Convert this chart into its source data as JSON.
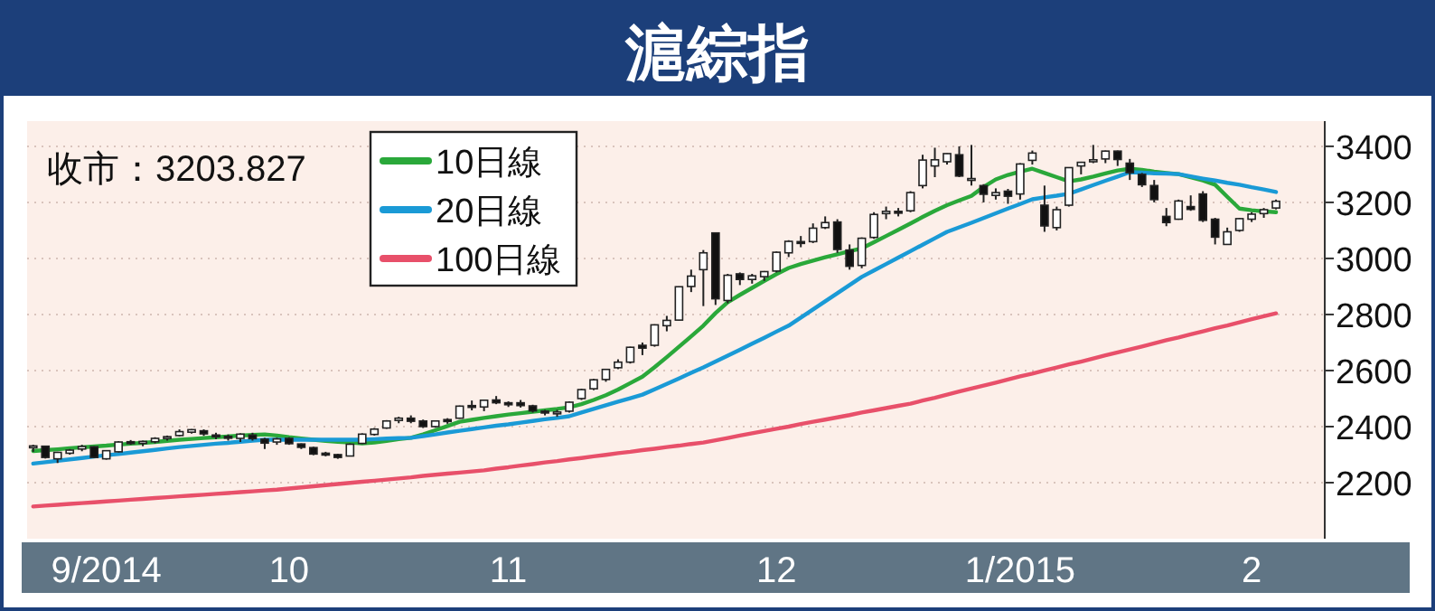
{
  "chart_data": {
    "type": "candlestick",
    "title": "滬綜指",
    "annotations": [
      "收市：3203.827"
    ],
    "categories": [
      null,
      null,
      null,
      null,
      null,
      null,
      "9/2014",
      null,
      null,
      null,
      null,
      null,
      null,
      null,
      null,
      null,
      null,
      null,
      null,
      null,
      null,
      "10",
      null,
      null,
      null,
      null,
      null,
      null,
      null,
      null,
      null,
      null,
      null,
      null,
      null,
      null,
      null,
      null,
      null,
      "11",
      null,
      null,
      null,
      null,
      null,
      null,
      null,
      null,
      null,
      null,
      null,
      null,
      null,
      null,
      null,
      null,
      null,
      null,
      null,
      null,
      null,
      "12",
      null,
      null,
      null,
      null,
      null,
      null,
      null,
      null,
      null,
      null,
      null,
      null,
      null,
      null,
      null,
      null,
      null,
      null,
      null,
      "1/2015",
      null,
      null,
      null,
      null,
      null,
      null,
      null,
      null,
      null,
      null,
      null,
      null,
      null,
      null,
      null,
      null,
      null,
      null,
      "2",
      null,
      null
    ],
    "ohlc": [
      [
        2325,
        2335,
        2310,
        2331
      ],
      [
        2330,
        2332,
        2286,
        2290
      ],
      [
        2285,
        2310,
        2270,
        2308
      ],
      [
        2305,
        2320,
        2300,
        2316
      ],
      [
        2320,
        2335,
        2312,
        2329
      ],
      [
        2328,
        2330,
        2288,
        2290
      ],
      [
        2285,
        2316,
        2282,
        2314
      ],
      [
        2310,
        2348,
        2308,
        2345
      ],
      [
        2346,
        2352,
        2335,
        2343
      ],
      [
        2340,
        2350,
        2330,
        2347
      ],
      [
        2346,
        2362,
        2340,
        2358
      ],
      [
        2358,
        2368,
        2350,
        2364
      ],
      [
        2368,
        2390,
        2365,
        2382
      ],
      [
        2380,
        2391,
        2375,
        2389
      ],
      [
        2385,
        2390,
        2367,
        2374
      ],
      [
        2370,
        2378,
        2355,
        2366
      ],
      [
        2365,
        2372,
        2350,
        2359
      ],
      [
        2358,
        2376,
        2345,
        2373
      ],
      [
        2370,
        2378,
        2350,
        2357
      ],
      [
        2355,
        2360,
        2320,
        2341
      ],
      [
        2345,
        2360,
        2335,
        2356
      ],
      [
        2358,
        2362,
        2335,
        2339
      ],
      [
        2338,
        2340,
        2320,
        2326
      ],
      [
        2325,
        2328,
        2298,
        2302
      ],
      [
        2305,
        2310,
        2294,
        2302
      ],
      [
        2300,
        2303,
        2285,
        2290
      ],
      [
        2295,
        2340,
        2294,
        2337
      ],
      [
        2340,
        2376,
        2338,
        2373
      ],
      [
        2372,
        2395,
        2368,
        2391
      ],
      [
        2395,
        2423,
        2392,
        2420
      ],
      [
        2422,
        2435,
        2412,
        2430
      ],
      [
        2430,
        2440,
        2412,
        2419
      ],
      [
        2420,
        2425,
        2395,
        2400
      ],
      [
        2400,
        2422,
        2396,
        2420
      ],
      [
        2425,
        2430,
        2410,
        2418
      ],
      [
        2430,
        2475,
        2428,
        2473
      ],
      [
        2475,
        2493,
        2458,
        2469
      ],
      [
        2470,
        2496,
        2455,
        2494
      ],
      [
        2495,
        2509,
        2480,
        2485
      ],
      [
        2485,
        2490,
        2470,
        2478
      ],
      [
        2485,
        2495,
        2468,
        2475
      ],
      [
        2474,
        2478,
        2450,
        2456
      ],
      [
        2455,
        2460,
        2440,
        2450
      ],
      [
        2448,
        2460,
        2435,
        2452
      ],
      [
        2455,
        2490,
        2450,
        2487
      ],
      [
        2500,
        2535,
        2495,
        2532
      ],
      [
        2535,
        2570,
        2530,
        2567
      ],
      [
        2568,
        2605,
        2560,
        2604
      ],
      [
        2610,
        2640,
        2605,
        2630
      ],
      [
        2630,
        2685,
        2625,
        2683
      ],
      [
        2690,
        2700,
        2655,
        2680
      ],
      [
        2690,
        2765,
        2685,
        2763
      ],
      [
        2760,
        2795,
        2740,
        2779
      ],
      [
        2780,
        2900,
        2778,
        2899
      ],
      [
        2900,
        2960,
        2880,
        2937
      ],
      [
        2960,
        3030,
        2830,
        3020
      ],
      [
        3091,
        3091,
        2834,
        2856
      ],
      [
        2850,
        2945,
        2840,
        2940
      ],
      [
        2945,
        2950,
        2905,
        2925
      ],
      [
        2925,
        2945,
        2910,
        2938
      ],
      [
        2935,
        2955,
        2920,
        2953
      ],
      [
        2955,
        3025,
        2950,
        3022
      ],
      [
        3020,
        3065,
        3005,
        3061
      ],
      [
        3060,
        3080,
        3040,
        3057
      ],
      [
        3060,
        3125,
        3055,
        3108
      ],
      [
        3110,
        3150,
        3105,
        3128
      ],
      [
        3130,
        3140,
        3020,
        3032
      ],
      [
        3030,
        3050,
        2960,
        2972
      ],
      [
        2975,
        3075,
        2965,
        3072
      ],
      [
        3075,
        3165,
        3070,
        3157
      ],
      [
        3160,
        3185,
        3140,
        3168
      ],
      [
        3168,
        3180,
        3150,
        3166
      ],
      [
        3170,
        3240,
        3165,
        3235
      ],
      [
        3260,
        3370,
        3250,
        3351
      ],
      [
        3330,
        3395,
        3290,
        3352
      ],
      [
        3345,
        3375,
        3335,
        3374
      ],
      [
        3370,
        3400,
        3290,
        3294
      ],
      [
        3280,
        3405,
        3260,
        3285
      ],
      [
        3260,
        3265,
        3200,
        3229
      ],
      [
        3225,
        3250,
        3210,
        3235
      ],
      [
        3240,
        3248,
        3195,
        3222
      ],
      [
        3230,
        3340,
        3210,
        3337
      ],
      [
        3350,
        3385,
        3335,
        3376
      ],
      [
        3190,
        3260,
        3095,
        3116
      ],
      [
        3110,
        3185,
        3100,
        3174
      ],
      [
        3190,
        3325,
        3185,
        3324
      ],
      [
        3330,
        3345,
        3300,
        3343
      ],
      [
        3345,
        3405,
        3340,
        3352
      ],
      [
        3355,
        3385,
        3340,
        3383
      ],
      [
        3383,
        3385,
        3330,
        3353
      ],
      [
        3340,
        3355,
        3280,
        3306
      ],
      [
        3300,
        3305,
        3255,
        3263
      ],
      [
        3260,
        3280,
        3200,
        3210
      ],
      [
        3150,
        3180,
        3115,
        3128
      ],
      [
        3140,
        3210,
        3138,
        3205
      ],
      [
        3185,
        3225,
        3170,
        3175
      ],
      [
        3230,
        3240,
        3130,
        3136
      ],
      [
        3140,
        3145,
        3050,
        3076
      ],
      [
        3050,
        3110,
        3050,
        3095
      ],
      [
        3100,
        3145,
        3095,
        3142
      ],
      [
        3140,
        3165,
        3130,
        3158
      ],
      [
        3160,
        3180,
        3145,
        3174
      ],
      [
        3180,
        3210,
        3175,
        3204
      ]
    ],
    "series": [
      {
        "name": "10日線",
        "type": "line",
        "color": "#2aa83a",
        "values": [
          2313,
          2316,
          2319,
          2323,
          2326,
          2329,
          2332,
          2336,
          2339,
          2342,
          2345,
          2349,
          2353,
          2356,
          2359,
          2362,
          2365,
          2368,
          2370,
          2372,
          2368,
          2362,
          2357,
          2353,
          2349,
          2346,
          2343,
          2340,
          2343,
          2349,
          2355,
          2360,
          2372,
          2387,
          2402,
          2417,
          2424,
          2431,
          2437,
          2443,
          2448,
          2453,
          2458,
          2463,
          2469,
          2480,
          2495,
          2512,
          2532,
          2555,
          2578,
          2612,
          2648,
          2685,
          2722,
          2760,
          2805,
          2844,
          2870,
          2895,
          2920,
          2944,
          2966,
          2980,
          2992,
          3004,
          3015,
          3026,
          3036,
          3058,
          3080,
          3102,
          3125,
          3148,
          3170,
          3190,
          3207,
          3223,
          3255,
          3282,
          3298,
          3310,
          3320,
          3305,
          3290,
          3275,
          3282,
          3292,
          3303,
          3314,
          3320,
          3316,
          3310,
          3305,
          3301,
          3290,
          3278,
          3263,
          3220,
          3178,
          3172,
          3168,
          3165
        ]
      },
      {
        "name": "20日線",
        "type": "line",
        "color": "#1a9ad6",
        "values": [
          2268,
          2273,
          2278,
          2283,
          2288,
          2293,
          2298,
          2302,
          2307,
          2312,
          2317,
          2322,
          2327,
          2331,
          2335,
          2339,
          2342,
          2346,
          2350,
          2353,
          2353,
          2353,
          2353,
          2353,
          2353,
          2353,
          2353,
          2353,
          2355,
          2357,
          2359,
          2360,
          2366,
          2372,
          2379,
          2385,
          2391,
          2397,
          2403,
          2408,
          2414,
          2420,
          2426,
          2431,
          2437,
          2450,
          2463,
          2476,
          2489,
          2501,
          2514,
          2533,
          2552,
          2572,
          2592,
          2611,
          2632,
          2653,
          2674,
          2696,
          2717,
          2739,
          2760,
          2789,
          2818,
          2847,
          2876,
          2905,
          2934,
          2957,
          2980,
          3003,
          3026,
          3049,
          3072,
          3095,
          3111,
          3127,
          3144,
          3161,
          3178,
          3194,
          3211,
          3218,
          3224,
          3231,
          3246,
          3262,
          3277,
          3292,
          3308,
          3306,
          3304,
          3303,
          3301,
          3293,
          3285,
          3278,
          3270,
          3263,
          3254,
          3246,
          3237
        ]
      },
      {
        "name": "100日線",
        "type": "line",
        "color": "#e8506a",
        "values": [
          2115,
          2118,
          2121,
          2124,
          2127,
          2130,
          2133,
          2136,
          2139,
          2142,
          2145,
          2148,
          2151,
          2154,
          2157,
          2160,
          2163,
          2166,
          2169,
          2172,
          2175,
          2179,
          2183,
          2187,
          2191,
          2195,
          2199,
          2203,
          2207,
          2211,
          2215,
          2219,
          2224,
          2228,
          2232,
          2236,
          2240,
          2244,
          2250,
          2255,
          2261,
          2266,
          2272,
          2277,
          2283,
          2288,
          2294,
          2299,
          2305,
          2310,
          2316,
          2321,
          2327,
          2332,
          2338,
          2343,
          2351,
          2359,
          2368,
          2376,
          2384,
          2392,
          2400,
          2409,
          2417,
          2425,
          2433,
          2441,
          2450,
          2458,
          2466,
          2474,
          2482,
          2493,
          2503,
          2514,
          2525,
          2536,
          2546,
          2557,
          2568,
          2579,
          2589,
          2600,
          2611,
          2622,
          2632,
          2643,
          2654,
          2665,
          2675,
          2686,
          2697,
          2708,
          2718,
          2729,
          2740,
          2751,
          2761,
          2772,
          2783,
          2794,
          2804
        ]
      }
    ],
    "ylim": [
      2000,
      3490
    ],
    "yticks": [
      2200,
      2400,
      2600,
      2800,
      3000,
      3200,
      3400
    ],
    "grid": "y",
    "legend": "top left",
    "marker": "none",
    "line_style": "solid"
  }
}
